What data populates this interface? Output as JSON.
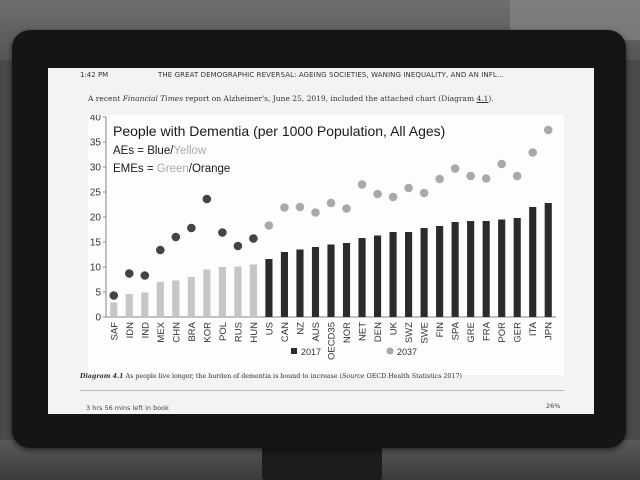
{
  "status": {
    "time": "1:42 PM",
    "book_title": "THE GREAT DEMOGRAPHIC REVERSAL: AGEING SOCIETIES, WANING INEQUALITY, AND AN INFL..."
  },
  "intro": {
    "pre": "A recent ",
    "source": "Financial Times",
    "mid": " report on Alzheimer's, June 25, 2019, included the attached chart (Diagram ",
    "link": "4.1",
    "post": ")."
  },
  "caption": {
    "label": "Diagram 4.1",
    "text": "  As people live longer, the burden of dementia is bound to increase (",
    "source": "Source",
    "source_text": " OECD Health Statistics 2017)"
  },
  "footer": {
    "time_left": "3 hrs 56 mins left in book",
    "progress": "26%"
  },
  "chart_data": {
    "type": "bar",
    "title": "People with Dementia (per 1000 Population, All Ages)",
    "annotations": [
      {
        "prefix": "AEs = ",
        "a": "Blue",
        "sep": "/",
        "b": "Yellow"
      },
      {
        "prefix": "EMEs = ",
        "a": "Green",
        "sep": "/",
        "b": "Orange"
      }
    ],
    "ylim": [
      0,
      40
    ],
    "yticks": [
      0,
      5,
      10,
      15,
      20,
      25,
      30,
      35,
      40
    ],
    "categories": [
      "SAF",
      "IDN",
      "IND",
      "MEX",
      "CHN",
      "BRA",
      "KOR",
      "POL",
      "RUS",
      "HUN",
      "US",
      "CAN",
      "NZ",
      "AUS",
      "OECD35",
      "NOR",
      "NET",
      "DEN",
      "UK",
      "SWZ",
      "SWE",
      "FIN",
      "SPA",
      "GRE",
      "FRA",
      "POR",
      "GER",
      "ITA",
      "JPN"
    ],
    "series": [
      {
        "name": "2017",
        "type": "bar",
        "values": [
          2.9,
          4.6,
          4.9,
          7.0,
          7.3,
          8.0,
          9.5,
          10.0,
          10.1,
          10.5,
          11.6,
          13.0,
          13.5,
          14.0,
          14.5,
          14.8,
          15.8,
          16.3,
          17.0,
          17.0,
          17.8,
          18.2,
          19.0,
          19.2,
          19.2,
          19.5,
          19.8,
          22.0,
          22.8
        ]
      },
      {
        "name": "2037",
        "type": "scatter",
        "values": [
          4.3,
          8.7,
          8.3,
          13.4,
          16.0,
          17.8,
          23.6,
          16.9,
          14.2,
          15.7,
          18.3,
          21.9,
          22.0,
          20.9,
          22.8,
          21.7,
          26.5,
          24.6,
          24.0,
          25.8,
          24.8,
          27.6,
          29.7,
          28.2,
          27.7,
          30.6,
          28.2,
          32.9,
          37.4
        ]
      }
    ],
    "grid": false,
    "legend": "bottom-center",
    "colors": {
      "bar_emerging": "#c6c6c6",
      "bar_advanced": "#2b2b2b",
      "dot_emerging": "#444444",
      "dot_advanced": "#a9a9a9",
      "annot_light": "#aaaaaa"
    }
  }
}
